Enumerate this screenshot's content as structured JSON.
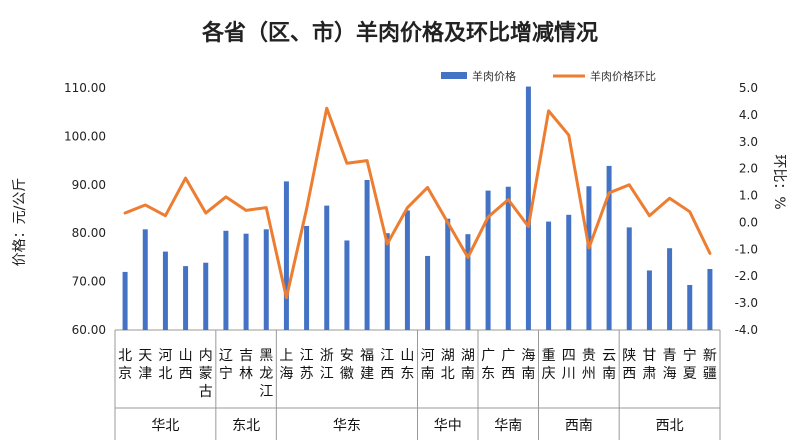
{
  "chart_data": {
    "type": "bar",
    "title": "各省（区、市）羊肉价格及环比增减情况",
    "ylabel": "价格：元/公斤",
    "y2label": "环比：%",
    "ylim": [
      60,
      110
    ],
    "y_ticks": [
      "60.00",
      "70.00",
      "80.00",
      "90.00",
      "100.00",
      "110.00"
    ],
    "y2lim": [
      -4,
      5
    ],
    "y2_ticks": [
      "-4.0",
      "-3.0",
      "-2.0",
      "-1.0",
      "0.0",
      "1.0",
      "2.0",
      "3.0",
      "4.0",
      "5.0"
    ],
    "legend_position": "top-right",
    "grid": false,
    "categories": [
      "北京",
      "天津",
      "河北",
      "山西",
      "内蒙古",
      "辽宁",
      "吉林",
      "黑龙江",
      "上海",
      "江苏",
      "浙江",
      "安徽",
      "福建",
      "江西",
      "山东",
      "河南",
      "湖北",
      "湖南",
      "广东",
      "广西",
      "海南",
      "重庆",
      "四川",
      "贵州",
      "云南",
      "陕西",
      "甘肃",
      "青海",
      "宁夏",
      "新疆"
    ],
    "regions": [
      {
        "name": "华北",
        "count": 5
      },
      {
        "name": "东北",
        "count": 3
      },
      {
        "name": "华东",
        "count": 7
      },
      {
        "name": "华中",
        "count": 3
      },
      {
        "name": "华南",
        "count": 3
      },
      {
        "name": "西南",
        "count": 4
      },
      {
        "name": "西北",
        "count": 5
      }
    ],
    "series": [
      {
        "name": "羊肉价格",
        "type": "bar",
        "axis": "left",
        "color": "#4472C4",
        "values": [
          72.0,
          80.8,
          76.2,
          73.2,
          73.9,
          80.5,
          79.9,
          80.8,
          90.7,
          81.5,
          85.7,
          78.5,
          91.0,
          80.0,
          84.7,
          75.3,
          83.0,
          79.8,
          88.8,
          89.6,
          110.3,
          82.4,
          83.8,
          89.7,
          93.9,
          81.2,
          72.3,
          76.9,
          69.3,
          72.6
        ]
      },
      {
        "name": "羊肉价格环比",
        "type": "line",
        "axis": "right",
        "color": "#ED7D31",
        "values": [
          0.35,
          0.65,
          0.25,
          1.65,
          0.35,
          0.95,
          0.45,
          0.55,
          -2.8,
          0.5,
          4.25,
          2.2,
          2.3,
          -0.8,
          0.55,
          1.3,
          0.0,
          -1.3,
          0.2,
          0.85,
          -0.15,
          4.15,
          3.25,
          -0.95,
          1.1,
          1.4,
          0.25,
          0.9,
          0.4,
          -1.15
        ]
      }
    ]
  }
}
